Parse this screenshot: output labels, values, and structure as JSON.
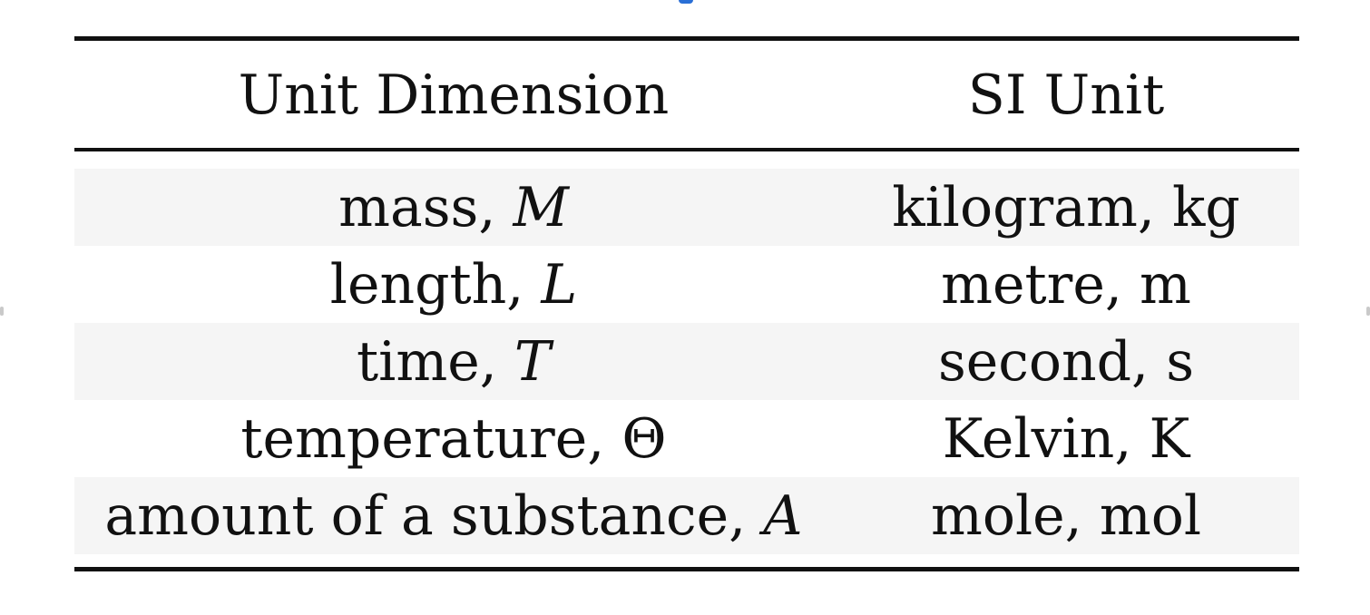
{
  "table": {
    "headers": {
      "dimension": "Unit Dimension",
      "si_unit": "SI Unit"
    },
    "rows": [
      {
        "dimension": "mass, ",
        "symbol": "M",
        "symbol_italic": true,
        "si_unit": "kilogram, kg"
      },
      {
        "dimension": "length, ",
        "symbol": "L",
        "symbol_italic": true,
        "si_unit": "metre, m"
      },
      {
        "dimension": "time, ",
        "symbol": "T",
        "symbol_italic": true,
        "si_unit": "second, s"
      },
      {
        "dimension": "temperature, ",
        "symbol": "Θ",
        "symbol_italic": false,
        "si_unit": "Kelvin, K"
      },
      {
        "dimension": "amount of a substance, ",
        "symbol": "A",
        "symbol_italic": true,
        "si_unit": "mole, mol"
      }
    ]
  },
  "colors": {
    "row_shade": "#f5f5f5",
    "rule": "#111111",
    "text": "#111111"
  }
}
